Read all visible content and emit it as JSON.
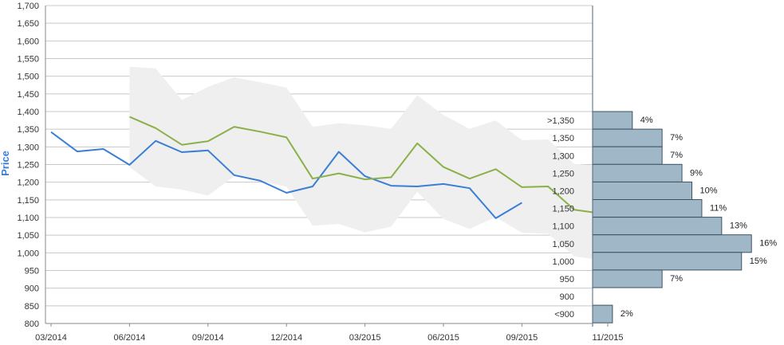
{
  "chart_data": {
    "type": "line",
    "ylabel": "Price",
    "ylim": [
      800,
      1700
    ],
    "y_ticks": [
      "800",
      "850",
      "900",
      "950",
      "1,000",
      "1,050",
      "1,100",
      "1,150",
      "1,200",
      "1,250",
      "1,300",
      "1,350",
      "1,400",
      "1,450",
      "1,500",
      "1,550",
      "1,600",
      "1,650",
      "1,700"
    ],
    "x_ticks": [
      "03/2014",
      "06/2014",
      "09/2014",
      "12/2014",
      "03/2015",
      "06/2015",
      "09/2015",
      "11/2015"
    ],
    "grid": true,
    "colors": {
      "price": "#3a7fd5",
      "forecast": "#8bb04a",
      "band": "#efefef",
      "hist_fill": "#9fb7c6",
      "hist_stroke": "#3c5364",
      "axis_label": "#3a7fd5"
    },
    "series": [
      {
        "key": "price",
        "points": [
          [
            "2014-03",
            1342
          ],
          [
            "2014-04",
            1287
          ],
          [
            "2014-05",
            1294
          ],
          [
            "2014-06",
            1249
          ],
          [
            "2014-07",
            1317
          ],
          [
            "2014-08",
            1285
          ],
          [
            "2014-09",
            1290
          ],
          [
            "2014-10",
            1220
          ],
          [
            "2014-11",
            1204
          ],
          [
            "2014-12",
            1170
          ],
          [
            "2015-01",
            1188
          ],
          [
            "2015-02",
            1286
          ],
          [
            "2015-03",
            1217
          ],
          [
            "2015-04",
            1190
          ],
          [
            "2015-05",
            1188
          ],
          [
            "2015-06",
            1195
          ],
          [
            "2015-07",
            1183
          ],
          [
            "2015-08",
            1098
          ],
          [
            "2015-09",
            1142
          ]
        ]
      },
      {
        "key": "forecast",
        "points": [
          [
            "2014-06",
            1385
          ],
          [
            "2014-07",
            1353
          ],
          [
            "2014-08",
            1306
          ],
          [
            "2014-09",
            1316
          ],
          [
            "2014-10",
            1357
          ],
          [
            "2014-11",
            1343
          ],
          [
            "2014-12",
            1327
          ],
          [
            "2015-01",
            1210
          ],
          [
            "2015-02",
            1225
          ],
          [
            "2015-03",
            1208
          ],
          [
            "2015-04",
            1214
          ],
          [
            "2015-05",
            1310
          ],
          [
            "2015-06",
            1243
          ],
          [
            "2015-07",
            1210
          ],
          [
            "2015-08",
            1237
          ],
          [
            "2015-09",
            1186
          ],
          [
            "2015-10",
            1188
          ],
          [
            "2015-11",
            1122
          ],
          [
            "2015-12",
            1112
          ]
        ]
      }
    ],
    "band": {
      "upper": [
        [
          "2014-06",
          1527
        ],
        [
          "2014-07",
          1522
        ],
        [
          "2014-08",
          1433
        ],
        [
          "2014-09",
          1470
        ],
        [
          "2014-10",
          1497
        ],
        [
          "2014-11",
          1483
        ],
        [
          "2014-12",
          1468
        ],
        [
          "2015-01",
          1357
        ],
        [
          "2015-02",
          1367
        ],
        [
          "2015-03",
          1361
        ],
        [
          "2015-04",
          1351
        ],
        [
          "2015-05",
          1446
        ],
        [
          "2015-06",
          1390
        ],
        [
          "2015-07",
          1351
        ],
        [
          "2015-08",
          1375
        ],
        [
          "2015-09",
          1319
        ],
        [
          "2015-10",
          1321
        ],
        [
          "2015-11",
          1252
        ],
        [
          "2015-12",
          1246
        ]
      ],
      "lower": [
        [
          "2014-06",
          1243
        ],
        [
          "2014-07",
          1188
        ],
        [
          "2014-08",
          1179
        ],
        [
          "2014-09",
          1162
        ],
        [
          "2014-10",
          1217
        ],
        [
          "2014-11",
          1203
        ],
        [
          "2014-12",
          1187
        ],
        [
          "2015-01",
          1077
        ],
        [
          "2015-02",
          1082
        ],
        [
          "2015-03",
          1058
        ],
        [
          "2015-04",
          1074
        ],
        [
          "2015-05",
          1173
        ],
        [
          "2015-06",
          1096
        ],
        [
          "2015-07",
          1068
        ],
        [
          "2015-08",
          1101
        ],
        [
          "2015-09",
          1057
        ],
        [
          "2015-10",
          1054
        ],
        [
          "2015-11",
          990
        ],
        [
          "2015-12",
          980
        ]
      ]
    },
    "distribution": {
      "labels": [
        ">1,350",
        "1,350",
        "1,300",
        "1,250",
        "1,200",
        "1,150",
        "1,100",
        "1,050",
        "1,000",
        "950",
        "900",
        "<900"
      ],
      "percents": [
        4,
        7,
        7,
        9,
        10,
        11,
        13,
        16,
        15,
        7,
        0,
        2
      ],
      "percent_labels": [
        "4%",
        "7%",
        "7%",
        "9%",
        "10%",
        "11%",
        "13%",
        "16%",
        "15%",
        "7%",
        "",
        "2%"
      ]
    }
  }
}
